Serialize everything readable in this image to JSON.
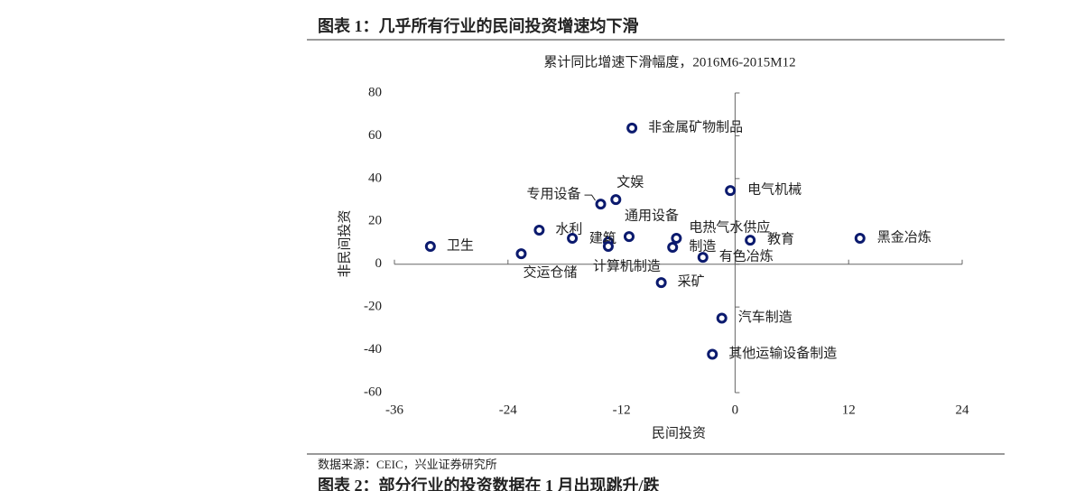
{
  "header": {
    "title": "图表 1：几乎所有行业的民间投资增速均下滑"
  },
  "chart_data": {
    "type": "scatter",
    "title": "累计同比增速下滑幅度，2016M6-2015M12",
    "x_label": "民间投资",
    "y_label": "非民间投资",
    "x": [
      -10.9,
      -0.5,
      -12.6,
      -14.2,
      -11.2,
      -20.7,
      -32.2,
      -22.6,
      -17.2,
      -13.4,
      -13.4,
      -6.2,
      -6.6,
      -3.4,
      1.6,
      13.2,
      -7.8,
      -1.4,
      -2.4
    ],
    "values": [
      63.6,
      34.4,
      30.2,
      28.1,
      12.9,
      15.9,
      8.3,
      4.9,
      12.1,
      10.4,
      8.3,
      12.1,
      7.9,
      3.2,
      11.2,
      12.1,
      -8.6,
      -25.2,
      -42.1
    ],
    "labels": [
      "非金属矿物制品",
      "电气机械",
      "文娱",
      "专用设备",
      "通用设备",
      "水利",
      "卫生",
      "交运仓储",
      null,
      "建筑",
      "计算机制造",
      [
        "电热气水供应",
        "制造"
      ],
      null,
      "有色冶炼",
      "教育",
      "黑金冶炼",
      "采矿",
      "汽车制造",
      "其他运输设备制造"
    ],
    "color": "#0b1a6e",
    "xlim": [
      -36,
      24
    ],
    "xticks": [
      -36,
      -24,
      -12,
      0,
      12,
      24
    ],
    "ylim": [
      -60,
      80
    ],
    "yticks": [
      -60,
      -40,
      -20,
      0,
      20,
      40,
      60,
      80
    ]
  },
  "source": "数据来源：CEIC，兴业证券研究所",
  "next_header": {
    "title": "图表 2：部分行业的投资数据在 1 月出现跳升/跌"
  }
}
